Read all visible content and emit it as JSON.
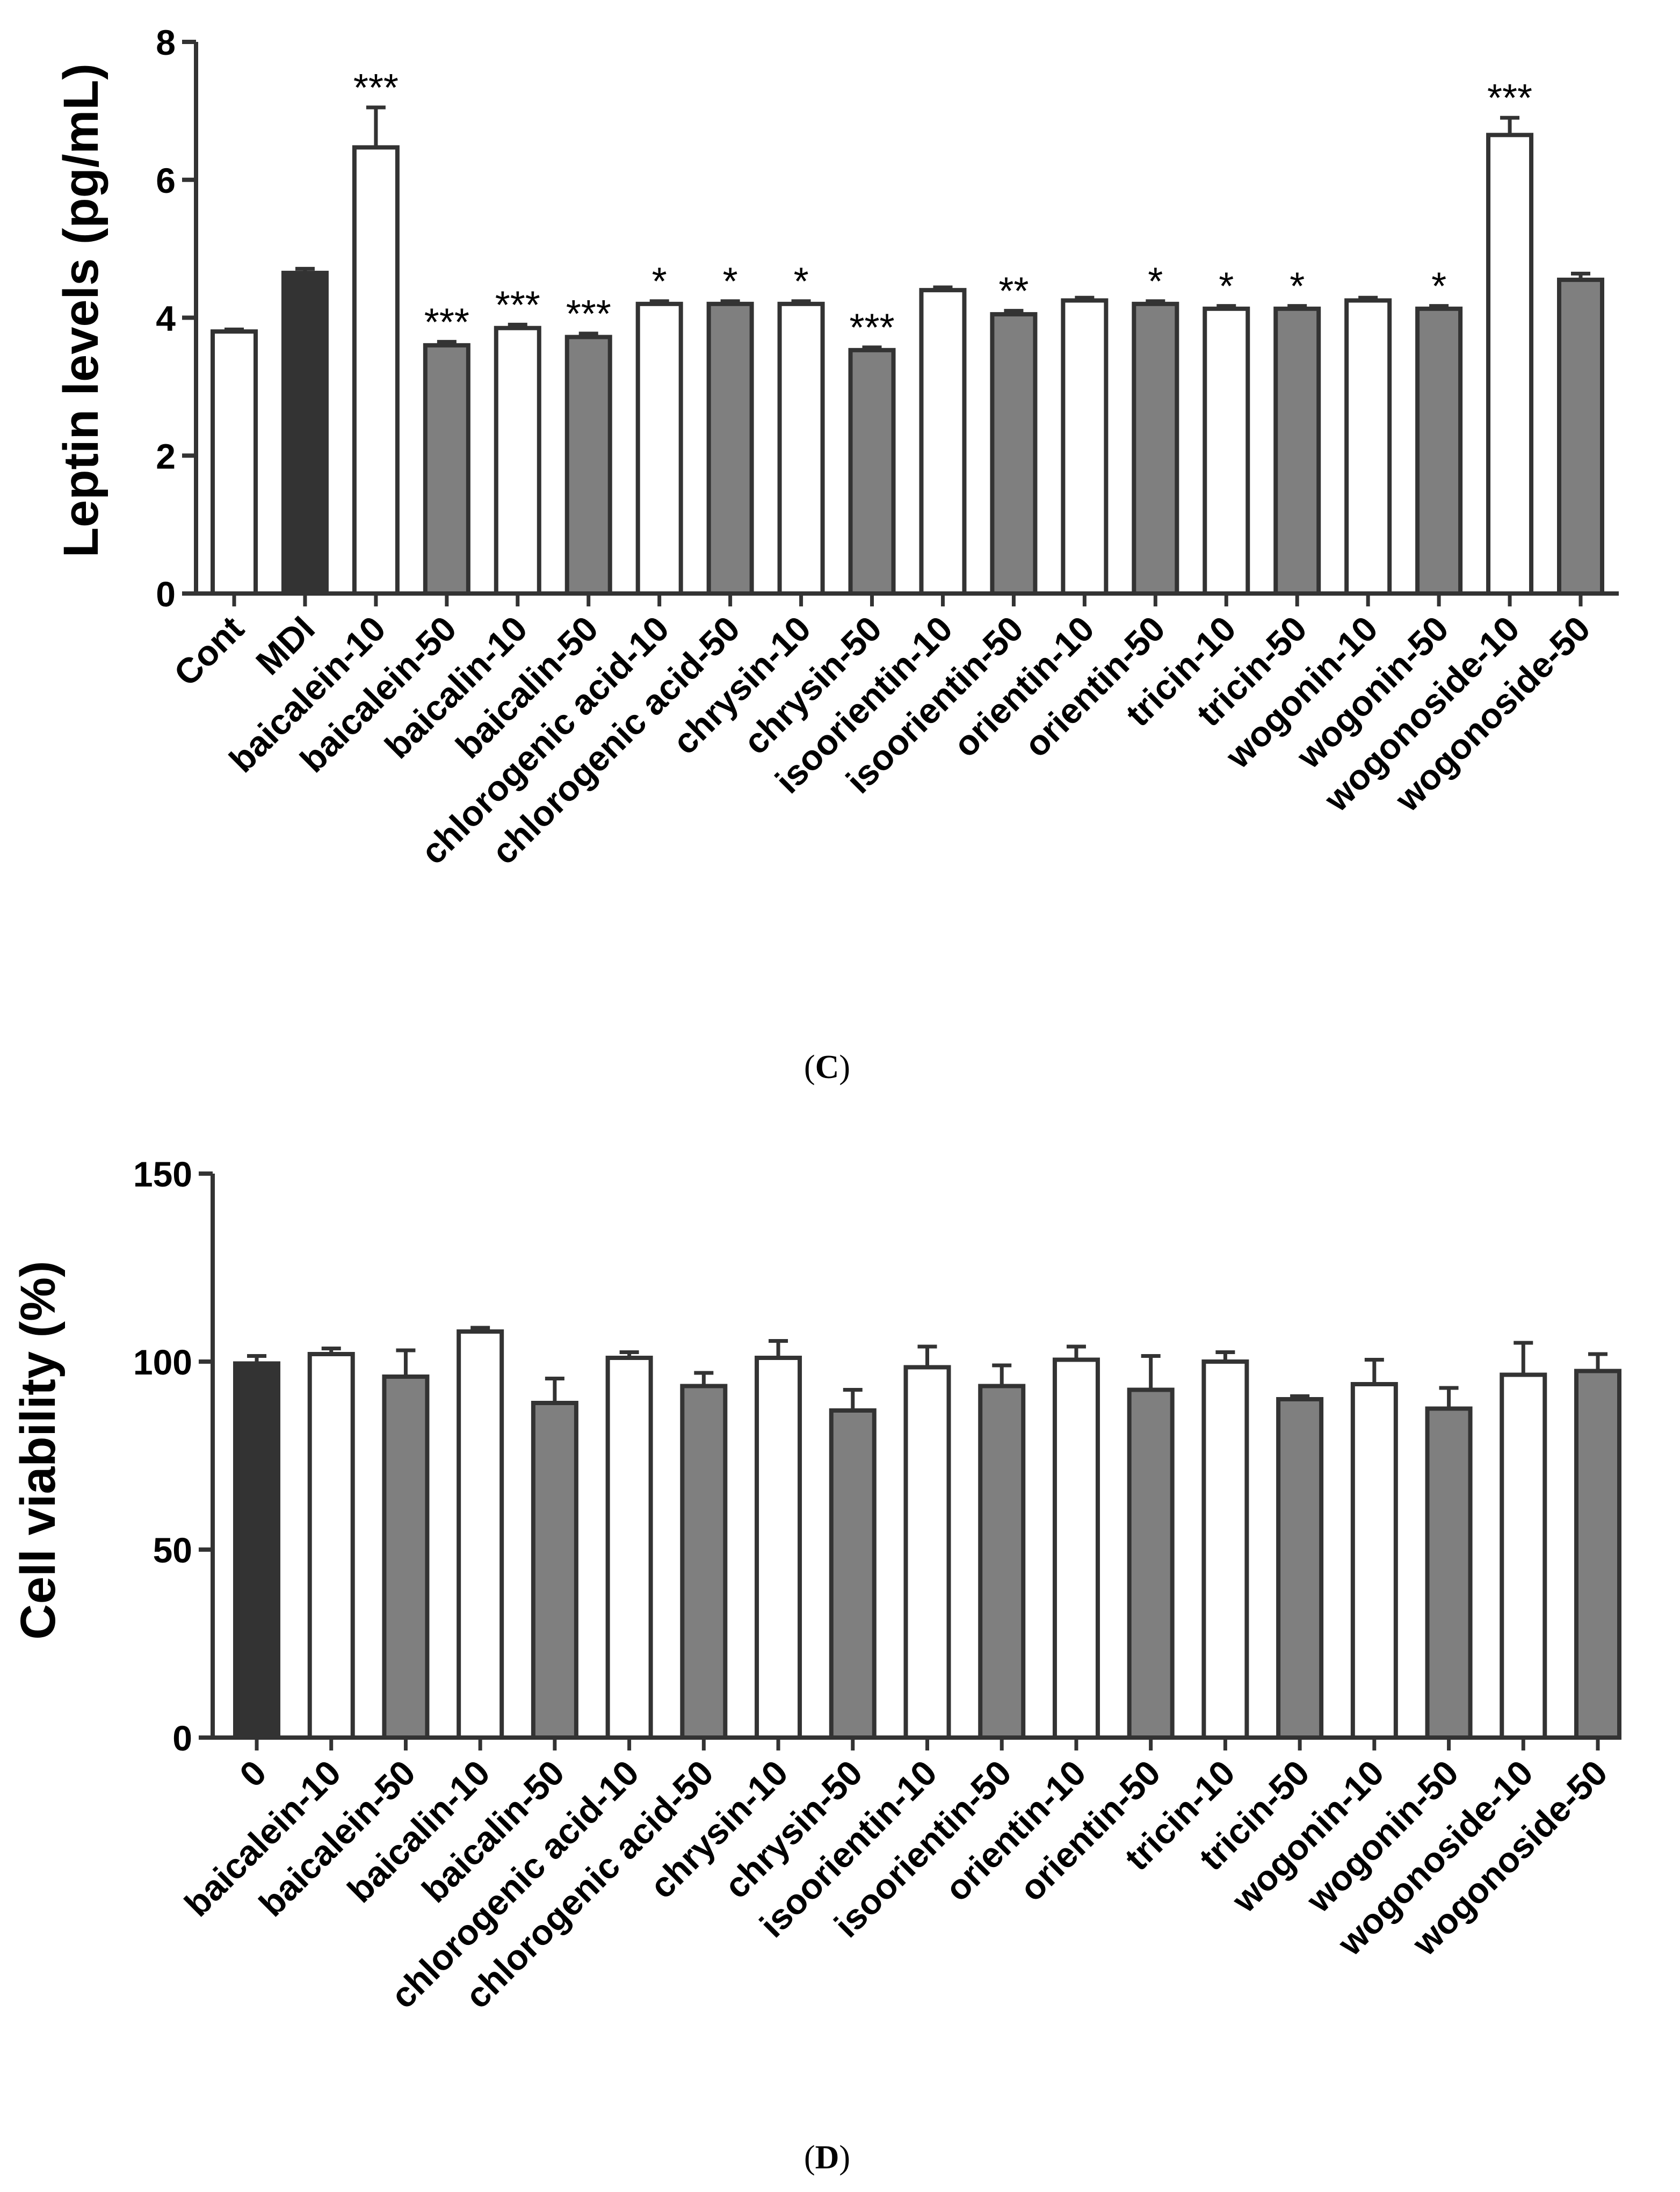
{
  "colors": {
    "white": "#ffffff",
    "gray": "#7f7f7f",
    "black": "#333333",
    "stroke": "#333333"
  },
  "chart_data": [
    {
      "type": "bar",
      "panel_label": "C",
      "ylabel": "Leptin levels (pg/mL)",
      "xlabel": "",
      "ylim": [
        0,
        8
      ],
      "yticks": [
        0,
        2,
        4,
        6,
        8
      ],
      "grid": false,
      "categories": [
        "Cont",
        "MDI",
        "baicalein-10",
        "baicalein-50",
        "baicalin-10",
        "baicalin-50",
        "chlorogenic acid-10",
        "chlorogenic acid-50",
        "chrysin-10",
        "chrysin-50",
        "isoorientin-10",
        "isoorientin-50",
        "orientin-10",
        "orientin-50",
        "tricin-10",
        "tricin-50",
        "wogonin-10",
        "wogonin-50",
        "wogonoside-10",
        "wogonoside-50"
      ],
      "values": [
        3.8,
        4.65,
        6.47,
        3.6,
        3.85,
        3.72,
        4.2,
        4.2,
        4.2,
        3.53,
        4.4,
        4.05,
        4.25,
        4.2,
        4.13,
        4.13,
        4.25,
        4.13,
        6.65,
        4.55
      ],
      "errors": [
        0.03,
        0.06,
        0.58,
        0.05,
        0.05,
        0.05,
        0.04,
        0.04,
        0.04,
        0.04,
        0.04,
        0.05,
        0.04,
        0.04,
        0.04,
        0.04,
        0.04,
        0.04,
        0.25,
        0.09
      ],
      "fills": [
        "white",
        "black",
        "white",
        "gray",
        "white",
        "gray",
        "white",
        "gray",
        "white",
        "gray",
        "white",
        "gray",
        "white",
        "gray",
        "white",
        "gray",
        "white",
        "gray",
        "white",
        "gray"
      ],
      "significance": [
        "",
        "",
        "***",
        "***",
        "***",
        "***",
        "*",
        "*",
        "*",
        "***",
        "",
        "**",
        "",
        "*",
        "*",
        "*",
        "",
        "*",
        "***",
        ""
      ]
    },
    {
      "type": "bar",
      "panel_label": "D",
      "ylabel": "Cell viability (%)",
      "xlabel": "",
      "ylim": [
        0,
        150
      ],
      "yticks": [
        0,
        50,
        100,
        150
      ],
      "grid": false,
      "categories": [
        "0",
        "baicalein-10",
        "baicalein-50",
        "baicalin-10",
        "baicalin-50",
        "chlorogenic acid-10",
        "chlorogenic acid-50",
        "chrysin-10",
        "chrysin-50",
        "isoorientin-10",
        "isoorientin-50",
        "orientin-10",
        "orientin-50",
        "tricin-10",
        "tricin-50",
        "wogonin-10",
        "wogonin-50",
        "wogonoside-10",
        "wogonoside-50"
      ],
      "values": [
        99.5,
        102,
        96,
        108,
        89,
        101,
        93.5,
        101,
        87,
        98.5,
        93.5,
        100.5,
        92.5,
        100,
        90,
        94,
        87.5,
        96.5,
        97.5
      ],
      "errors": [
        2,
        1.5,
        7,
        1,
        6.5,
        1.5,
        3.5,
        4.5,
        5.5,
        5.5,
        5.5,
        3.5,
        9,
        2.5,
        0.8,
        6.5,
        5.5,
        8.5,
        4.5
      ],
      "fills": [
        "black",
        "white",
        "gray",
        "white",
        "gray",
        "white",
        "gray",
        "white",
        "gray",
        "white",
        "gray",
        "white",
        "gray",
        "white",
        "gray",
        "white",
        "gray",
        "white",
        "gray"
      ],
      "significance": []
    }
  ]
}
